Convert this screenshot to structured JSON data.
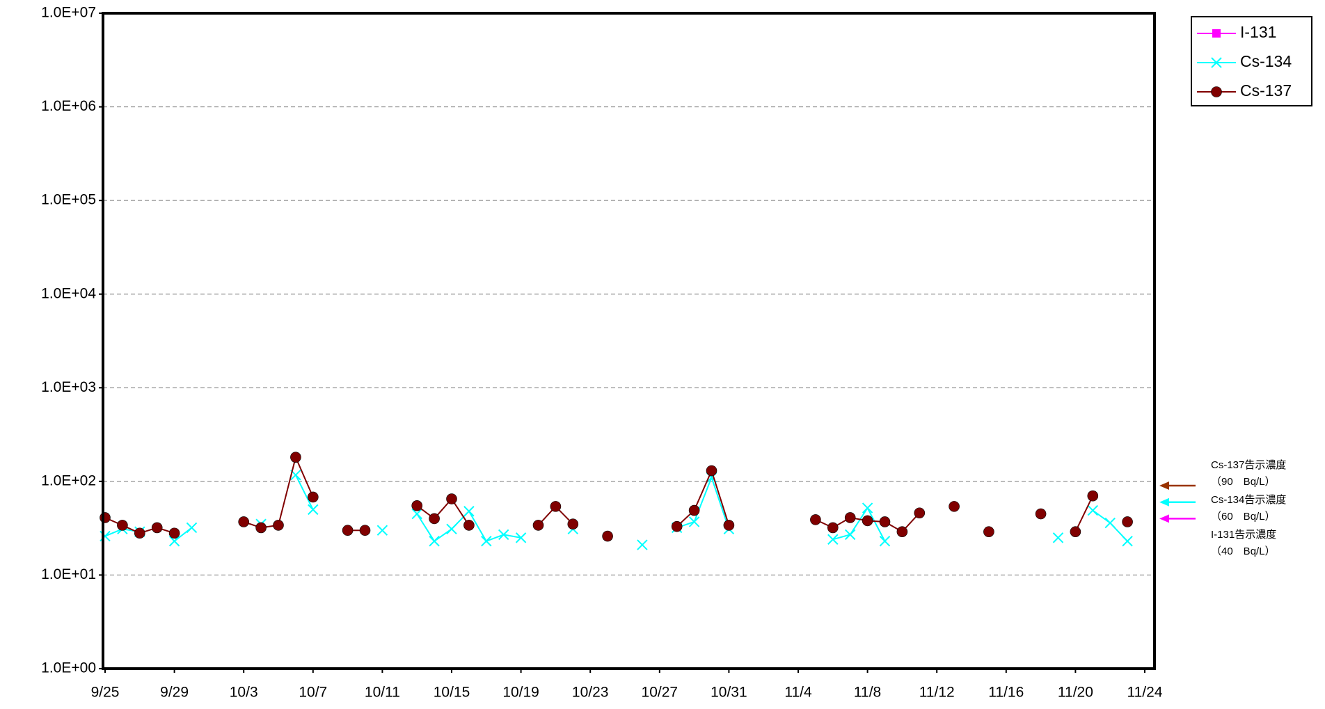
{
  "chart_data": {
    "type": "line",
    "categories": [
      "9/25",
      null,
      null,
      null,
      "9/29",
      null,
      null,
      null,
      "10/3",
      null,
      null,
      null,
      "10/7",
      null,
      null,
      null,
      "10/11",
      null,
      null,
      null,
      "10/15",
      null,
      null,
      null,
      "10/19",
      null,
      null,
      null,
      "10/23",
      null,
      null,
      null,
      "10/27",
      null,
      null,
      null,
      "10/31",
      null,
      null,
      null,
      "11/4",
      null,
      null,
      null,
      "11/8",
      null,
      null,
      null,
      "11/12",
      null,
      null,
      null,
      "11/16",
      null,
      null,
      null,
      "11/20",
      null,
      null,
      null,
      "11/24"
    ],
    "series": [
      {
        "name": "I-131",
        "color": "#ff00ff",
        "marker": "square",
        "values": [
          null,
          null,
          null,
          null,
          null,
          null,
          null,
          null,
          null,
          null,
          null,
          null,
          null,
          null,
          null,
          null,
          null,
          null,
          null,
          null,
          null,
          null,
          null,
          null,
          null,
          null,
          null,
          null,
          null,
          null,
          null,
          null,
          null,
          null,
          null,
          null,
          null,
          null,
          null,
          null,
          null,
          null,
          null,
          null,
          null,
          null,
          null,
          null,
          null,
          null,
          null,
          null,
          null,
          null,
          null,
          null,
          null,
          null,
          null,
          null,
          null
        ]
      },
      {
        "name": "Cs-134",
        "color": "#00ffff",
        "marker": "x",
        "values": [
          26,
          31,
          29,
          null,
          23,
          32,
          null,
          null,
          null,
          35,
          null,
          117,
          50,
          null,
          null,
          null,
          30,
          null,
          45,
          23,
          31,
          48,
          23,
          27,
          25,
          null,
          null,
          31,
          null,
          null,
          null,
          21,
          null,
          32,
          37,
          110,
          31,
          null,
          null,
          null,
          null,
          null,
          24,
          27,
          52,
          23,
          null,
          null,
          null,
          null,
          null,
          null,
          null,
          null,
          null,
          25,
          null,
          49,
          36,
          23,
          null
        ]
      },
      {
        "name": "Cs-137",
        "color": "#800000",
        "marker": "circle",
        "values": [
          41,
          34,
          28,
          32,
          28,
          null,
          null,
          null,
          37,
          32,
          34,
          181,
          68,
          null,
          30,
          30,
          null,
          null,
          55,
          40,
          65,
          34,
          null,
          null,
          null,
          34,
          54,
          35,
          null,
          26,
          null,
          null,
          null,
          33,
          49,
          130,
          34,
          null,
          null,
          null,
          null,
          39,
          32,
          41,
          38,
          37,
          29,
          46,
          null,
          54,
          null,
          29,
          null,
          null,
          45,
          null,
          29,
          70,
          null,
          37,
          null
        ]
      }
    ],
    "ylim": [
      1,
      10000000
    ],
    "log_y": true,
    "grid": true,
    "yticks": [
      {
        "value": 1,
        "label": "1.0E+00"
      },
      {
        "value": 10,
        "label": "1.0E+01"
      },
      {
        "value": 100,
        "label": "1.0E+02"
      },
      {
        "value": 1000,
        "label": "1.0E+03"
      },
      {
        "value": 10000,
        "label": "1.0E+04"
      },
      {
        "value": 100000,
        "label": "1.0E+05"
      },
      {
        "value": 1000000,
        "label": "1.0E+06"
      },
      {
        "value": 10000000,
        "label": "1.0E+07"
      }
    ],
    "legend": "top-right",
    "limits": [
      {
        "label": "Cs-137告示濃度",
        "sublabel": "（90　Bq/L）",
        "value": 90,
        "color": "#993300"
      },
      {
        "label": "Cs-134告示濃度",
        "sublabel": "（60　Bq/L）",
        "value": 60,
        "color": "#00ffff"
      },
      {
        "label": "I-131告示濃度",
        "sublabel": "（40　Bq/L）",
        "value": 40,
        "color": "#ff00ff"
      }
    ]
  }
}
